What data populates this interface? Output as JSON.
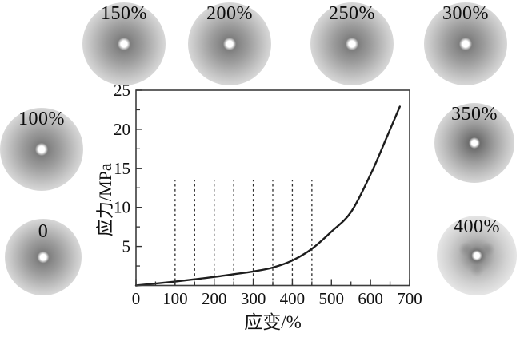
{
  "figure": {
    "background": "#ffffff",
    "patterns": [
      {
        "label": "150%"
      },
      {
        "label": "200%"
      },
      {
        "label": "250%"
      },
      {
        "label": "300%"
      },
      {
        "label": "100%"
      },
      {
        "label": "0"
      },
      {
        "label": "350%"
      },
      {
        "label": "400%"
      }
    ]
  },
  "chart_data": {
    "type": "line",
    "title": "",
    "xlabel": "应变/%",
    "ylabel": "应力/MPa",
    "xlim": [
      0,
      700
    ],
    "ylim": [
      0,
      25
    ],
    "x_ticks": [
      0,
      100,
      200,
      300,
      400,
      500,
      600,
      700
    ],
    "y_ticks": [
      5,
      10,
      15,
      20,
      25
    ],
    "x_minor_step": 50,
    "y_minor_step": 2.5,
    "grid": false,
    "legend": "none",
    "series": [
      {
        "name": "stress-strain-curve",
        "x": [
          0,
          50,
          100,
          150,
          200,
          250,
          300,
          350,
          400,
          450,
          500,
          550,
          600,
          640,
          675
        ],
        "y": [
          0,
          0.25,
          0.5,
          0.8,
          1.1,
          1.45,
          1.8,
          2.3,
          3.2,
          4.7,
          6.9,
          9.4,
          14.2,
          18.8,
          22.9
        ]
      }
    ],
    "dashed_guidelines": {
      "x_values": [
        100,
        150,
        200,
        250,
        300,
        350,
        400,
        450
      ],
      "y_bottom": 0,
      "y_top": 13.5
    },
    "colors": {
      "curve": "#1d1d1d",
      "axis": "#3d3d3d",
      "tick": "#333333",
      "dash": "#2b2b2b",
      "text": "#111111"
    }
  }
}
